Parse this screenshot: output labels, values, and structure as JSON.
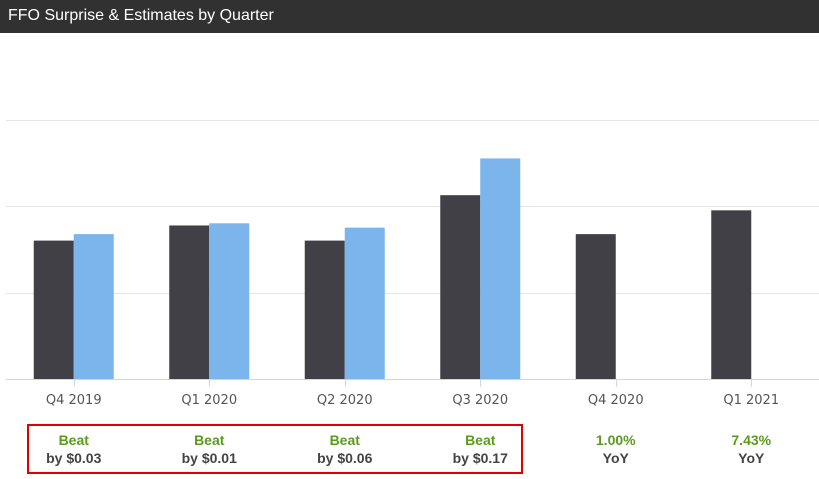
{
  "header": {
    "title": "FFO Surprise & Estimates by Quarter"
  },
  "chart_data": {
    "type": "bar",
    "title": "FFO Surprise & Estimates by Quarter",
    "categories": [
      "Q4 2019",
      "Q1 2020",
      "Q2 2020",
      "Q3 2020",
      "Q4 2020",
      "Q1 2021"
    ],
    "series": [
      {
        "values": [
          0.64,
          0.71,
          0.64,
          0.85,
          0.67,
          0.78
        ],
        "color": "#414046"
      },
      {
        "values": [
          0.67,
          0.72,
          0.7,
          1.02,
          null,
          null
        ],
        "color": "#7cb5ec"
      }
    ],
    "ylim": [
      0,
      1.6
    ],
    "grid": true,
    "legend": "none"
  },
  "summary": [
    {
      "line1": "Beat",
      "line2": "by $0.03"
    },
    {
      "line1": "Beat",
      "line2": "by $0.01"
    },
    {
      "line1": "Beat",
      "line2": "by $0.06"
    },
    {
      "line1": "Beat",
      "line2": "by $0.17"
    },
    {
      "line1": "1.00%",
      "line2": "YoY"
    },
    {
      "line1": "7.43%",
      "line2": "YoY"
    }
  ]
}
